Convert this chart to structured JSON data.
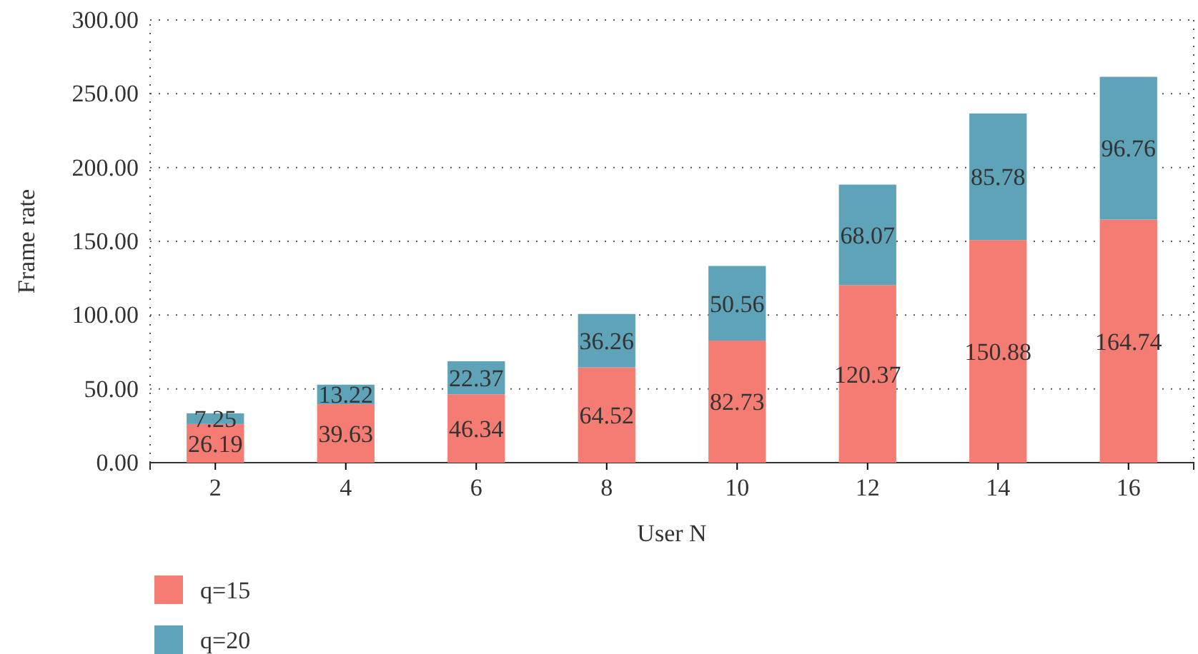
{
  "chart_data": {
    "type": "bar",
    "stacked": true,
    "xlabel": "User N",
    "ylabel": "Frame rate",
    "categories": [
      "2",
      "4",
      "6",
      "8",
      "10",
      "12",
      "14",
      "16"
    ],
    "series": [
      {
        "name": "q=15",
        "color": "#f47c72",
        "values": [
          26.19,
          39.63,
          46.34,
          64.52,
          82.73,
          120.37,
          150.88,
          164.74
        ]
      },
      {
        "name": "q=20",
        "color": "#5fa3b8",
        "values": [
          7.25,
          13.22,
          22.37,
          36.26,
          50.56,
          68.07,
          85.78,
          96.76
        ]
      }
    ],
    "ylim": [
      0,
      300
    ],
    "yticks": [
      {
        "value": 0,
        "label": "0.00"
      },
      {
        "value": 50,
        "label": "50.00"
      },
      {
        "value": 100,
        "label": "100.00"
      },
      {
        "value": 150,
        "label": "150.00"
      },
      {
        "value": 200,
        "label": "200.00"
      },
      {
        "value": 250,
        "label": "250.00"
      },
      {
        "value": 300,
        "label": "300.00"
      }
    ],
    "grid": "y",
    "legend": "bottom left",
    "data_labels": true
  }
}
